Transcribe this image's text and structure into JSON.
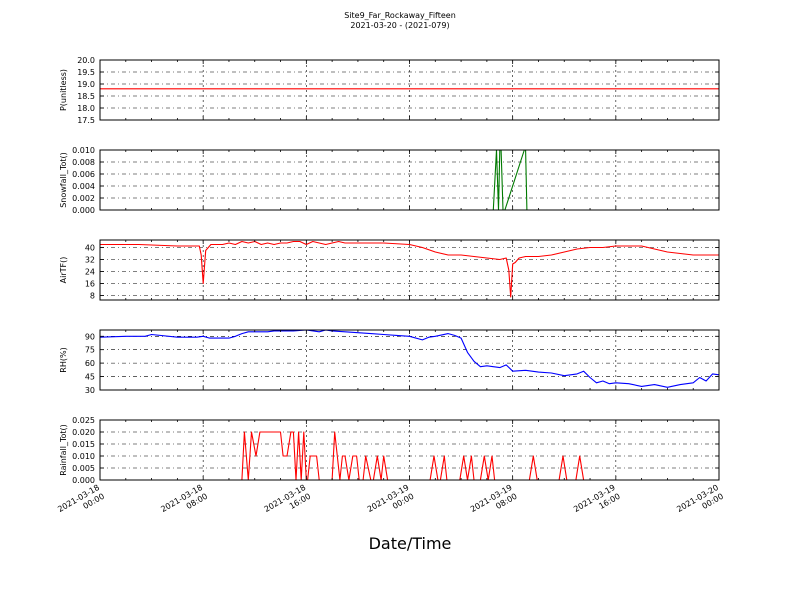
{
  "figure": {
    "title_line1": "Site9_Far_Rockaway_Fifteen",
    "title_line2": "2021-03-20 - (2021-079)",
    "xlabel": "Date/Time",
    "x_tick_labels": [
      [
        "2021-03-18",
        "00:00"
      ],
      [
        "2021-03-18",
        "08:00"
      ],
      [
        "2021-03-18",
        "16:00"
      ],
      [
        "2021-03-19",
        "00:00"
      ],
      [
        "2021-03-19",
        "08:00"
      ],
      [
        "2021-03-19",
        "16:00"
      ],
      [
        "2021-03-20",
        "00:00"
      ]
    ]
  },
  "chart_data": [
    {
      "type": "line",
      "ylabel": "P(unitless)",
      "ylim": [
        17.5,
        20.0
      ],
      "yticks": [
        "17.5",
        "18.0",
        "18.5",
        "19.0",
        "19.5",
        "20.0"
      ],
      "ytick_values": [
        17.5,
        18.0,
        18.5,
        19.0,
        19.5,
        20.0
      ],
      "color": "#ff0000",
      "grid": true,
      "x_hours": [
        0,
        48
      ],
      "series": [
        {
          "x": [
            0,
            48
          ],
          "values": [
            18.8,
            18.8
          ]
        }
      ]
    },
    {
      "type": "line",
      "ylabel": "Snowfall_Tot()",
      "ylim": [
        0.0,
        0.01
      ],
      "yticks": [
        "0.000",
        "0.002",
        "0.004",
        "0.006",
        "0.008",
        "0.010"
      ],
      "ytick_values": [
        0.0,
        0.002,
        0.004,
        0.006,
        0.008,
        0.01
      ],
      "color": "#007a00",
      "grid": true,
      "series": [
        {
          "x": [
            0,
            30.5,
            30.75,
            30.9,
            31.0,
            31.1,
            31.25,
            31.4,
            32.9,
            33.0,
            33.1,
            48
          ],
          "values": [
            0,
            0,
            0.01,
            0,
            0.01,
            0.01,
            0,
            0,
            0.01,
            0.01,
            0,
            0
          ]
        }
      ]
    },
    {
      "type": "line",
      "ylabel": "AirTF()",
      "ylim": [
        5,
        45
      ],
      "yticks": [
        "8",
        "16",
        "24",
        "32",
        "40"
      ],
      "ytick_values": [
        8,
        16,
        24,
        32,
        40
      ],
      "color": "#ff0000",
      "grid": true,
      "series": [
        {
          "x": [
            0,
            3,
            6,
            7.7,
            7.85,
            8.0,
            8.2,
            8.6,
            9.5,
            10,
            10.5,
            11,
            11.5,
            12,
            12.5,
            13,
            13.5,
            14,
            14.5,
            15,
            15.5,
            16,
            16.5,
            17,
            17.5,
            18,
            18.5,
            19,
            20,
            22,
            24,
            25,
            26,
            27,
            28,
            29,
            30,
            31,
            31.5,
            31.7,
            31.85,
            32.0,
            32.2,
            32.5,
            33,
            34,
            35,
            36,
            37,
            38,
            39,
            40,
            41,
            42,
            43,
            44,
            45,
            46,
            47,
            48
          ],
          "values": [
            42,
            42,
            41,
            41,
            35,
            16,
            38,
            42,
            42,
            43,
            42,
            44,
            43,
            44,
            42,
            43,
            42,
            43,
            43,
            44,
            44,
            42,
            44,
            43,
            42,
            43,
            44,
            43,
            43,
            43,
            42,
            40,
            37,
            35,
            35,
            34,
            33,
            32,
            33,
            25,
            7,
            29,
            30,
            33,
            34,
            34,
            35,
            37,
            39,
            40,
            40,
            41,
            41,
            41,
            39,
            37,
            36,
            35,
            35,
            35
          ]
        }
      ]
    },
    {
      "type": "line",
      "ylabel": "RH(%)",
      "ylim": [
        30,
        97
      ],
      "yticks": [
        "30",
        "45",
        "60",
        "75",
        "90"
      ],
      "ytick_values": [
        30,
        45,
        60,
        75,
        90
      ],
      "color": "#0000ff",
      "grid": true,
      "series": [
        {
          "x": [
            0,
            2,
            3.5,
            4,
            6,
            7.5,
            8,
            8.5,
            9,
            10,
            10.5,
            11,
            11.5,
            12,
            13,
            13.5,
            14,
            15,
            16,
            17,
            17.5,
            18,
            19,
            20,
            21,
            22,
            23,
            24,
            25,
            25.5,
            26,
            27,
            27.5,
            28,
            28.5,
            29,
            29.5,
            30,
            31,
            31.5,
            32,
            33,
            34,
            35,
            36,
            37,
            37.5,
            38,
            38.5,
            39,
            39.5,
            40,
            41,
            42,
            43,
            44,
            45,
            46,
            46.5,
            47,
            47.5,
            48
          ],
          "values": [
            89,
            90,
            90,
            92,
            89,
            89,
            90,
            88,
            88,
            88,
            90,
            93,
            95,
            95,
            95,
            96,
            96,
            96,
            97,
            95,
            97,
            96,
            95,
            94,
            93,
            92,
            91,
            90,
            86,
            89,
            90,
            93,
            91,
            88,
            72,
            62,
            56,
            57,
            55,
            58,
            51,
            52,
            50,
            49,
            46,
            48,
            51,
            44,
            38,
            40,
            37,
            38,
            37,
            34,
            36,
            33,
            36,
            38,
            44,
            40,
            48,
            47
          ]
        }
      ]
    },
    {
      "type": "line",
      "ylabel": "Rainfall_Tot()",
      "ylim": [
        0.0,
        0.025
      ],
      "yticks": [
        "0.000",
        "0.005",
        "0.010",
        "0.015",
        "0.020",
        "0.025"
      ],
      "ytick_values": [
        0.0,
        0.005,
        0.01,
        0.015,
        0.02,
        0.025
      ],
      "color": "#ff0000",
      "grid": true,
      "series": [
        {
          "x": [
            0,
            11.0,
            11.2,
            11.5,
            11.75,
            12.1,
            12.4,
            12.5,
            12.7,
            14.0,
            14.2,
            14.5,
            14.8,
            15.0,
            15.2,
            15.4,
            15.6,
            15.8,
            16.0,
            16.1,
            16.3,
            16.5,
            16.6,
            16.8,
            17.0,
            17.2,
            18.0,
            18.2,
            18.6,
            18.8,
            19.0,
            19.3,
            19.6,
            19.9,
            20.1,
            20.4,
            20.6,
            21.0,
            21.2,
            21.5,
            21.8,
            22.0,
            22.3,
            22.6,
            22.8,
            25.6,
            25.9,
            26.2,
            26.4,
            26.7,
            26.9,
            27.9,
            28.2,
            28.5,
            28.8,
            29.0,
            29.5,
            29.8,
            30.1,
            30.4,
            30.6,
            33.3,
            33.6,
            33.9,
            35.6,
            35.9,
            36.2,
            36.9,
            37.2,
            37.5,
            48
          ],
          "values": [
            0,
            0,
            0.02,
            0,
            0.02,
            0.01,
            0.02,
            0.02,
            0.02,
            0.02,
            0.01,
            0.01,
            0.02,
            0.02,
            0.0,
            0.02,
            0.0,
            0.02,
            0.0,
            0.0,
            0.01,
            0.01,
            0.01,
            0.01,
            0.0,
            0.0,
            0.0,
            0.02,
            0.0,
            0.01,
            0.01,
            0.0,
            0.01,
            0.01,
            0.0,
            0.0,
            0.01,
            0.0,
            0.0,
            0.01,
            0.0,
            0.01,
            0.0,
            0.0,
            0.0,
            0.0,
            0.01,
            0.0,
            0.0,
            0.01,
            0.0,
            0.0,
            0.01,
            0.0,
            0.01,
            0.0,
            0.0,
            0.01,
            0.0,
            0.01,
            0.0,
            0.0,
            0.01,
            0.0,
            0.0,
            0.01,
            0.0,
            0.0,
            0.01,
            0.0,
            0
          ]
        }
      ]
    }
  ]
}
